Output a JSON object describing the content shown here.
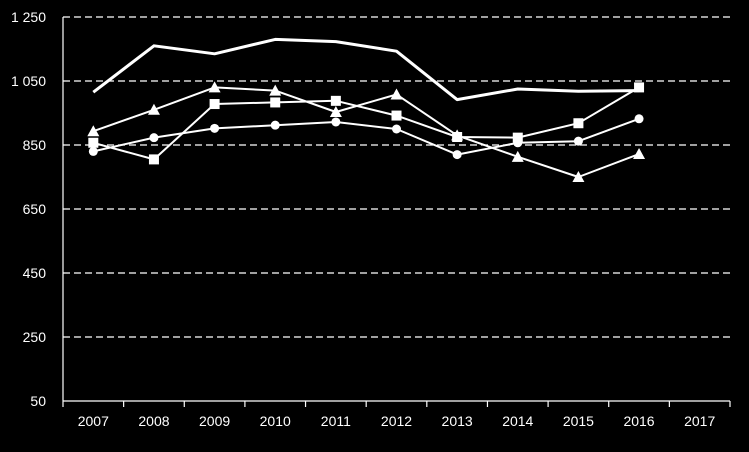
{
  "chart_data": {
    "type": "line",
    "title": "",
    "xlabel": "",
    "ylabel": "",
    "categories": [
      "2007",
      "2008",
      "2009",
      "2010",
      "2011",
      "2012",
      "2013",
      "2014",
      "2015",
      "2016",
      "2017"
    ],
    "ylim": [
      50,
      1250
    ],
    "yticks": [
      50,
      250,
      450,
      650,
      850,
      1050,
      1250
    ],
    "ytick_labels": [
      "50",
      "250",
      "450",
      "650",
      "850",
      "1 050",
      "1 250"
    ],
    "grid": "horizontal dashed",
    "colors": {
      "background": "#000000",
      "series": "#ffffff",
      "grid": "#ffffff"
    },
    "series": [
      {
        "marker": "none",
        "values": [
          1015,
          1160,
          1135,
          1180,
          1173,
          1143,
          992,
          1025,
          1018,
          1020,
          null
        ]
      },
      {
        "marker": "triangle",
        "values": [
          893,
          960,
          1030,
          1020,
          953,
          1008,
          880,
          813,
          750,
          822,
          null
        ]
      },
      {
        "marker": "square",
        "values": [
          857,
          805,
          978,
          983,
          988,
          942,
          875,
          873,
          918,
          1030,
          null
        ]
      },
      {
        "marker": "circle",
        "values": [
          830,
          873,
          902,
          912,
          922,
          900,
          820,
          857,
          862,
          932,
          null
        ]
      }
    ]
  }
}
